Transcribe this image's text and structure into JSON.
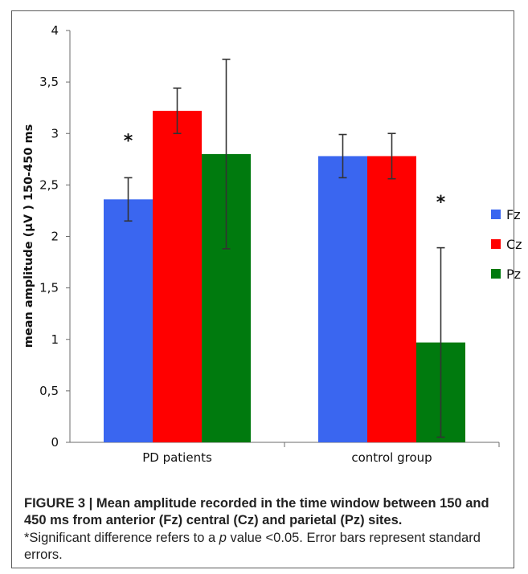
{
  "chart_data": {
    "type": "bar",
    "categories": [
      "PD patients",
      "control group"
    ],
    "series": [
      {
        "name": "Fz",
        "color": "#3a66f0",
        "values": [
          2.36,
          2.78
        ],
        "errors": [
          0.21,
          0.21
        ]
      },
      {
        "name": "Cz",
        "color": "#ff0000",
        "values": [
          3.22,
          2.78
        ],
        "errors": [
          0.22,
          0.22
        ]
      },
      {
        "name": "Pz",
        "color": "#007a0e",
        "values": [
          2.8,
          0.97
        ],
        "errors": [
          0.92,
          0.92
        ]
      }
    ],
    "ylabel": "mean amplitude (µV ) 150-450 ms",
    "ylim": [
      0,
      4
    ],
    "yticks": [
      "0",
      "0,5",
      "1",
      "1,5",
      "2",
      "2,5",
      "3",
      "3,5",
      "4"
    ],
    "yticks_values": [
      0,
      0.5,
      1,
      1.5,
      2,
      2.5,
      3,
      3.5,
      4
    ],
    "annotations": [
      {
        "text": "*",
        "category_index": 0,
        "series_index": 0,
        "y": 3.0
      },
      {
        "text": "*",
        "category_index": 1,
        "series_index": 2,
        "y": 2.4
      }
    ],
    "legend_position": "right",
    "grid": false
  },
  "caption": {
    "title": "FIGURE 3 | Mean amplitude recorded in the time window between 150 and 450 ms from anterior (Fz) central (Cz) and parietal (Pz) sites.",
    "note_prefix": "*Significant difference refers to a ",
    "note_italic": "p",
    "note_suffix": " value <0.05. Error bars represent standard errors."
  }
}
